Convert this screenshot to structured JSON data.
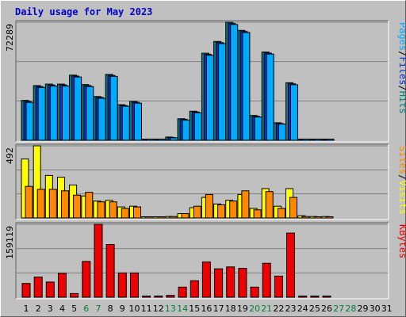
{
  "chart_data": {
    "type": "bar",
    "title": "Daily usage for May 2023",
    "categories": [
      "1",
      "2",
      "3",
      "4",
      "5",
      "6",
      "7",
      "8",
      "9",
      "10",
      "11",
      "12",
      "13",
      "14",
      "15",
      "16",
      "17",
      "18",
      "19",
      "20",
      "21",
      "22",
      "23",
      "24",
      "25",
      "26",
      "27",
      "28",
      "29",
      "30",
      "31"
    ],
    "weekend_days": [
      "6",
      "7",
      "13",
      "14",
      "20",
      "21",
      "27",
      "28"
    ],
    "colors": {
      "title": "#0000cc",
      "weekday_label": "#000000",
      "weekend_label": "#008040",
      "pages": "#00aaff",
      "files": "#0033cc",
      "hits": "#008080",
      "visits": "#ffff00",
      "sites": "#ff8800",
      "kbytes": "#ee0000",
      "plot_bg": "#c0c0c0",
      "grid": "#808080"
    },
    "panels": [
      {
        "id": "hits-files-pages",
        "max_label": "72289",
        "ylim": [
          0,
          72289
        ],
        "vlabel": [
          "Pages",
          "Files",
          "Hits"
        ],
        "series": [
          {
            "name": "Hits",
            "values": [
              24400,
              33500,
              34400,
              34400,
              39900,
              34100,
              26800,
              40300,
              21800,
              23800,
              0,
              0,
              2000,
              13200,
              17800,
              53300,
              60500,
              72289,
              67300,
              15200,
              54000,
              10700,
              35200,
              0,
              0,
              0,
              0,
              0,
              0,
              0,
              0
            ]
          },
          {
            "name": "Files",
            "values": [
              23800,
              32900,
              33800,
              33800,
              39300,
              33500,
              26300,
              39700,
              21300,
              23300,
              0,
              0,
              1700,
              12800,
              17300,
              52600,
              59800,
              71500,
              66600,
              14700,
              53400,
              10300,
              34600,
              0,
              0,
              0,
              0,
              0,
              0,
              0,
              0
            ]
          },
          {
            "name": "Pages",
            "values": [
              23200,
              32300,
              33200,
              33200,
              38700,
              32900,
              25700,
              39100,
              20800,
              22700,
              0,
              0,
              1500,
              12300,
              16800,
              52000,
              59200,
              70900,
              66000,
              14200,
              52800,
              9900,
              34000,
              0,
              0,
              0,
              0,
              0,
              0,
              0,
              0
            ]
          }
        ]
      },
      {
        "id": "visits-sites",
        "max_label": "492",
        "ylim": [
          0,
          492
        ],
        "vlabel": [
          "Sites",
          "Visits"
        ],
        "series": [
          {
            "name": "Visits",
            "values": [
              402,
              492,
              290,
              278,
              225,
              150,
              115,
              120,
              75,
              80,
              5,
              5,
              10,
              30,
              70,
              140,
              95,
              120,
              160,
              65,
              200,
              80,
              200,
              15,
              10,
              10,
              0,
              0,
              0,
              0,
              0
            ]
          },
          {
            "name": "Sites",
            "values": [
              215,
              195,
              195,
              185,
              155,
              175,
              110,
              110,
              65,
              75,
              5,
              5,
              10,
              30,
              80,
              160,
              90,
              115,
              185,
              55,
              180,
              65,
              140,
              10,
              5,
              5,
              0,
              0,
              0,
              0,
              0
            ]
          }
        ]
      },
      {
        "id": "kbytes",
        "max_label": "159119",
        "ylim": [
          0,
          159119
        ],
        "vlabel": [
          "KBytes"
        ],
        "series": [
          {
            "name": "KBytes",
            "values": [
              30000,
              44000,
              33000,
              52000,
              8000,
              78000,
              159119,
              115000,
              53000,
              53000,
              0,
              0,
              4000,
              22000,
              36000,
              77000,
              62000,
              66000,
              63000,
              22000,
              74000,
              46000,
              140000,
              0,
              0,
              0,
              0,
              0,
              0,
              0,
              0
            ]
          }
        ]
      }
    ]
  }
}
